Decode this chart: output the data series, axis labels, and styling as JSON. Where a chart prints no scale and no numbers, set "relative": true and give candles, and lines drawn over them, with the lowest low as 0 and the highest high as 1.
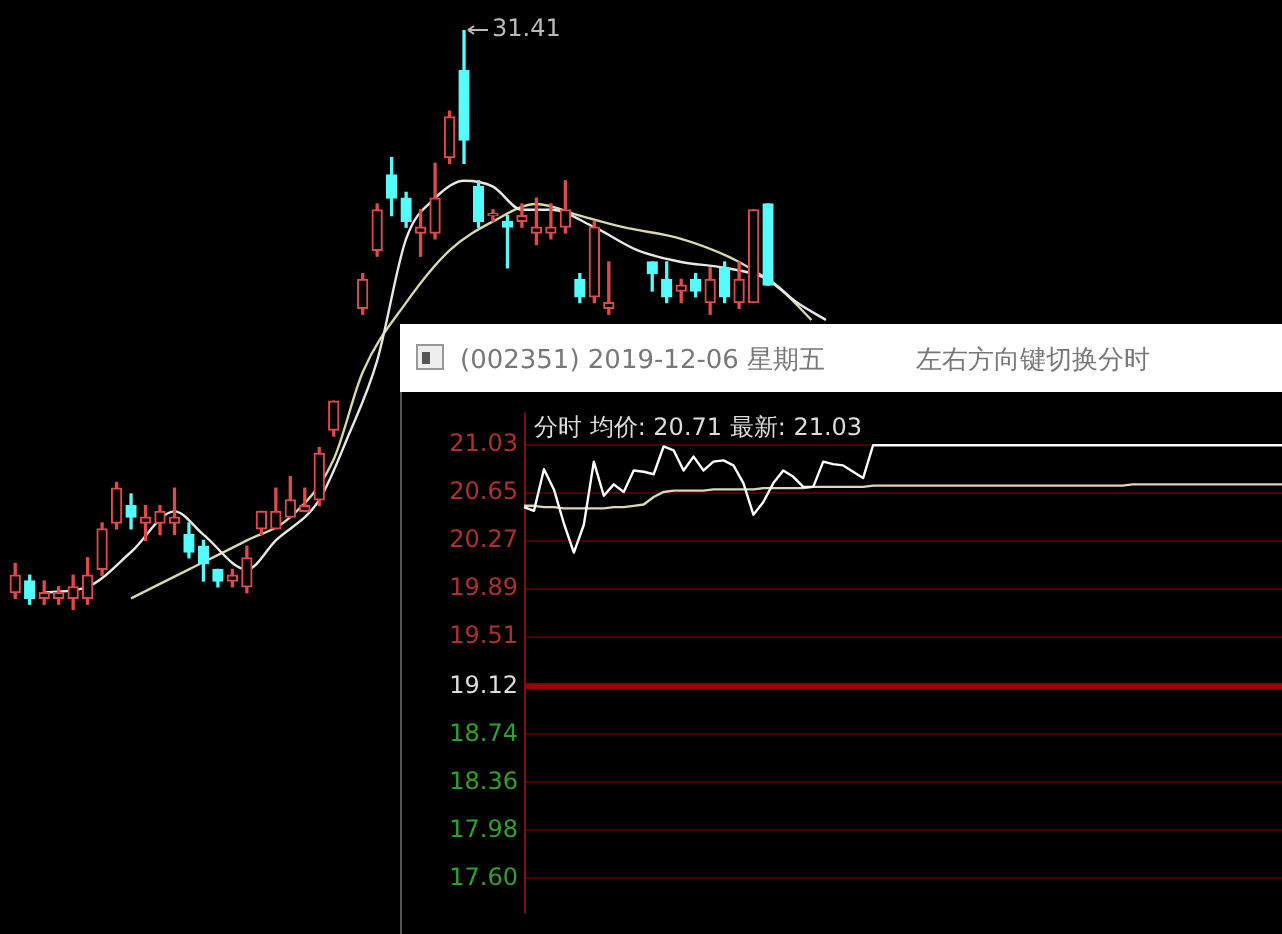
{
  "chart_data": [
    {
      "type": "candlestick",
      "relative": true,
      "categories": [
        null,
        null,
        null,
        null,
        null,
        null,
        null,
        null,
        null,
        null,
        null,
        null,
        null,
        null,
        null,
        null,
        null,
        null,
        null,
        null,
        null,
        null,
        null,
        null,
        null,
        null,
        null,
        null,
        null,
        null,
        null,
        null,
        null,
        null,
        null,
        null,
        null,
        null,
        null,
        null,
        null,
        null,
        null,
        null,
        null,
        null,
        null,
        null,
        null,
        null,
        null,
        null,
        null,
        null,
        null,
        null,
        null,
        null,
        null,
        null,
        null,
        null,
        null,
        null,
        null,
        null,
        null,
        null,
        null,
        null,
        null,
        null,
        null,
        null,
        null,
        null,
        null,
        null,
        null,
        null,
        null,
        null,
        null,
        null,
        null,
        null,
        null,
        null
      ],
      "ohlc": [
        [
          0.03,
          0.08,
          0.02,
          0.06
        ],
        [
          0.05,
          0.06,
          0.01,
          0.02
        ],
        [
          0.02,
          0.05,
          0.01,
          0.03
        ],
        [
          0.02,
          0.04,
          0.01,
          0.03
        ],
        [
          0.02,
          0.06,
          0,
          0.04
        ],
        [
          0.02,
          0.09,
          0.01,
          0.06
        ],
        [
          0.07,
          0.15,
          0.06,
          0.14
        ],
        [
          0.15,
          0.22,
          0.14,
          0.21
        ],
        [
          0.18,
          0.2,
          0.14,
          0.16
        ],
        [
          0.15,
          0.18,
          0.12,
          0.16
        ],
        [
          0.15,
          0.18,
          0.13,
          0.17
        ],
        [
          0.15,
          0.21,
          0.13,
          0.16
        ],
        [
          0.13,
          0.15,
          0.09,
          0.1
        ],
        [
          0.11,
          0.12,
          0.05,
          0.08
        ],
        [
          0.07,
          0.07,
          0.04,
          0.05
        ],
        [
          0.05,
          0.07,
          0.04,
          0.06
        ],
        [
          0.04,
          0.11,
          0.03,
          0.09
        ],
        [
          0.14,
          0.17,
          0.13,
          0.17
        ],
        [
          0.14,
          0.21,
          0.14,
          0.17
        ],
        [
          0.16,
          0.23,
          0.16,
          0.19
        ],
        [
          0.17,
          0.21,
          0.17,
          0.18
        ],
        [
          0.19,
          0.28,
          0.18,
          0.27
        ],
        [
          0.31,
          0.36,
          0.3,
          0.36
        ],
        null,
        [
          0.52,
          0.58,
          0.51,
          0.57
        ],
        [
          0.62,
          0.7,
          0.61,
          0.69
        ],
        [
          0.75,
          0.78,
          0.68,
          0.71
        ],
        [
          0.71,
          0.72,
          0.66,
          0.67
        ],
        [
          0.65,
          0.69,
          0.61,
          0.66
        ],
        [
          0.65,
          0.77,
          0.64,
          0.71
        ],
        [
          0.78,
          0.86,
          0.77,
          0.85
        ],
        [
          0.93,
          1,
          0.77,
          0.81
        ],
        [
          0.73,
          0.74,
          0.66,
          0.67
        ],
        [
          0.68,
          0.69,
          0.67,
          0.68
        ],
        [
          0.67,
          0.68,
          0.59,
          0.66
        ],
        [
          0.67,
          0.7,
          0.66,
          0.68
        ],
        [
          0.65,
          0.71,
          0.63,
          0.66
        ],
        [
          0.65,
          0.7,
          0.64,
          0.66
        ],
        [
          0.66,
          0.74,
          0.65,
          0.69
        ],
        [
          0.57,
          0.58,
          0.53,
          0.54
        ],
        [
          0.54,
          0.67,
          0.53,
          0.66
        ],
        [
          0.52,
          0.6,
          0.51,
          0.53
        ],
        null,
        null,
        [
          0.6,
          0.6,
          0.55,
          0.58
        ],
        [
          0.57,
          0.6,
          0.53,
          0.54
        ],
        [
          0.55,
          0.57,
          0.53,
          0.56
        ],
        [
          0.57,
          0.58,
          0.54,
          0.55
        ],
        [
          0.53,
          0.59,
          0.51,
          0.57
        ],
        [
          0.59,
          0.6,
          0.53,
          0.54
        ],
        [
          0.53,
          0.6,
          0.52,
          0.57
        ],
        [
          0.53,
          0.69,
          0.53,
          0.69
        ],
        [
          0.7,
          0.7,
          0.56,
          0.56
        ],
        null,
        null,
        null,
        null,
        null,
        null,
        null,
        null,
        null,
        null,
        null,
        null,
        null,
        null,
        null,
        null,
        null,
        null,
        null,
        null,
        null,
        null,
        null,
        null,
        null,
        null,
        null,
        null,
        null,
        null,
        null,
        null,
        null,
        null,
        null
      ],
      "colors": [
        "#e04a4a",
        "#54fcfc",
        "#e04a4a",
        "#e04a4a",
        "#e04a4a",
        "#e04a4a",
        "#e04a4a",
        "#e04a4a",
        "#54fcfc",
        "#e04a4a",
        "#e04a4a",
        "#e04a4a",
        "#54fcfc",
        "#54fcfc",
        "#54fcfc",
        "#e04a4a",
        "#e04a4a",
        "#e04a4a",
        "#e04a4a",
        "#e04a4a",
        "#e04a4a",
        "#e04a4a",
        "#e04a4a",
        null,
        "#e04a4a",
        "#e04a4a",
        "#54fcfc",
        "#54fcfc",
        "#e04a4a",
        "#e04a4a",
        "#e04a4a",
        "#54fcfc",
        "#54fcfc",
        "#e04a4a",
        "#54fcfc",
        "#e04a4a",
        "#e04a4a",
        "#e04a4a",
        "#e04a4a",
        "#54fcfc",
        "#e04a4a",
        "#e04a4a",
        null,
        null,
        "#54fcfc",
        "#54fcfc",
        "#e04a4a",
        "#54fcfc",
        "#e04a4a",
        "#54fcfc",
        "#e04a4a",
        "#e04a4a",
        "#54fcfc",
        null,
        null,
        null,
        null,
        null,
        null,
        null,
        null,
        null,
        null,
        null,
        null,
        null,
        null,
        null,
        null,
        null,
        null,
        null,
        null,
        null,
        null,
        null,
        null,
        null,
        null,
        null,
        null,
        null,
        null,
        null,
        null,
        null,
        null,
        null
      ],
      "value_labels": [
        null,
        null,
        null,
        null,
        null,
        null,
        null,
        null,
        null,
        null,
        null,
        null,
        null,
        null,
        null,
        null,
        null,
        null,
        null,
        null,
        null,
        null,
        null,
        null,
        null,
        null,
        null,
        null,
        null,
        null,
        null,
        "31.41",
        null,
        null,
        null,
        null,
        null,
        null,
        null,
        null,
        null,
        null,
        null,
        null,
        null,
        null,
        null,
        null,
        null,
        null,
        null,
        null,
        null,
        null,
        null,
        null,
        null,
        null,
        null,
        null,
        null,
        null,
        null,
        null,
        null,
        null,
        null,
        null,
        null,
        null,
        null,
        null,
        null,
        null,
        null,
        null,
        null,
        null,
        null,
        null,
        null,
        null,
        null,
        null,
        null,
        null,
        null,
        null
      ],
      "series": [
        {
          "type": "line",
          "color": "#e8e8e8",
          "values": [
            null,
            null,
            0.03,
            null,
            null,
            0.04,
            null,
            null,
            0.1,
            null,
            null,
            0.17,
            null,
            0.13,
            null,
            null,
            0.07,
            null,
            0.12,
            null,
            null,
            0.19,
            null,
            0.3,
            null,
            0.43,
            null,
            0.64,
            null,
            0.71,
            null,
            0.74,
            null,
            0.73,
            null,
            0.69,
            null,
            0.69,
            null,
            null,
            0.66,
            null,
            null,
            0.62,
            null,
            null,
            0.6,
            null,
            null,
            0.59,
            null,
            null,
            0.57,
            null,
            0.53,
            null,
            0.5,
            null,
            null,
            null,
            null,
            null,
            null,
            null,
            null,
            null,
            null,
            null,
            null,
            null,
            null,
            null,
            null,
            null,
            null,
            null,
            null,
            null,
            null,
            null,
            null,
            null,
            null,
            null,
            null,
            null,
            null,
            null
          ]
        },
        {
          "type": "line",
          "color": "#d8d8a8",
          "values": [
            null,
            null,
            null,
            null,
            null,
            null,
            null,
            null,
            0.02,
            null,
            null,
            null,
            0.07,
            null,
            null,
            null,
            0.12,
            null,
            null,
            0.16,
            null,
            null,
            0.26,
            null,
            0.41,
            null,
            null,
            0.53,
            null,
            null,
            0.62,
            null,
            null,
            0.67,
            null,
            null,
            0.7,
            null,
            null,
            0.68,
            null,
            null,
            0.66,
            null,
            null,
            null,
            0.64,
            null,
            null,
            null,
            0.6,
            null,
            null,
            0.55,
            null,
            0.5,
            null,
            null,
            null,
            null,
            null,
            null,
            null,
            null,
            null,
            null,
            null,
            null,
            null,
            null,
            null,
            null,
            null,
            null,
            null,
            null,
            null,
            null,
            null,
            null,
            null,
            null,
            null,
            null,
            null,
            null,
            null,
            null
          ]
        }
      ]
    },
    {
      "type": "line",
      "title": "(002351) 2019-12-06 星期五",
      "subtitle": "左右方向键切换分时",
      "annotations": [
        "分时 均价: 20.71 最新: 21.03"
      ],
      "categories": [
        null,
        null,
        null,
        null,
        null,
        null,
        null,
        null,
        null,
        null,
        null,
        null,
        null,
        null,
        null,
        null,
        null,
        null,
        null,
        null,
        null,
        null,
        null,
        null,
        null,
        null,
        null,
        null,
        null,
        null,
        null,
        null,
        null,
        null,
        null,
        null,
        null,
        null,
        null,
        null,
        null,
        null,
        null,
        null,
        null,
        null,
        null,
        null,
        null,
        null,
        null,
        null,
        null,
        null,
        null,
        null,
        null,
        null,
        null,
        null,
        null,
        null,
        null,
        null,
        null,
        null,
        null,
        null,
        null,
        null,
        null,
        null,
        null,
        null,
        null,
        null,
        null
      ],
      "ylim": [
        17.32,
        21.29
      ],
      "yticks": [
        21.03,
        20.65,
        20.27,
        19.89,
        19.51,
        19.12,
        18.74,
        18.36,
        17.98,
        {
          "value": 17.6,
          "label": "17.60"
        }
      ],
      "tick_labels": "y",
      "grid": "y",
      "ref_lines": [
        {
          "axis": "y",
          "value": 19.12,
          "color": "#a00000"
        }
      ],
      "series": [
        {
          "color": "#ffffff",
          "values": [
            20.54,
            20.51,
            20.84,
            20.68,
            20.41,
            20.18,
            20.4,
            20.9,
            20.63,
            20.72,
            20.66,
            20.83,
            20.82,
            20.8,
            21.02,
            20.99,
            20.83,
            20.94,
            20.83,
            20.9,
            20.91,
            20.87,
            20.73,
            20.48,
            20.58,
            20.73,
            20.83,
            20.78,
            20.7,
            20.7,
            20.9,
            20.88,
            20.87,
            20.82,
            20.77,
            21.03,
            21.03,
            21.03,
            21.03,
            21.03,
            21.03,
            21.03,
            21.03,
            21.03,
            21.03,
            21.03,
            21.03,
            21.03,
            21.03,
            21.03,
            21.03,
            21.03,
            21.03,
            21.03,
            21.03,
            21.03,
            21.03,
            21.03,
            21.03,
            21.03,
            21.03,
            21.03,
            21.03,
            21.03,
            21.03,
            21.03,
            21.03,
            21.03,
            21.03,
            21.03,
            21.03,
            21.03,
            21.03,
            21.03,
            21.03,
            21.03,
            21.03
          ]
        },
        {
          "color": "#d8d8b8",
          "values": [
            20.55,
            20.55,
            20.54,
            20.54,
            20.53,
            20.53,
            20.53,
            20.53,
            20.53,
            20.54,
            20.54,
            20.55,
            20.56,
            20.62,
            20.66,
            20.67,
            20.67,
            20.67,
            20.67,
            20.68,
            20.68,
            20.68,
            20.68,
            20.68,
            20.69,
            20.69,
            20.69,
            20.69,
            20.69,
            20.7,
            20.7,
            20.7,
            20.7,
            20.7,
            20.7,
            20.71,
            20.71,
            20.71,
            20.71,
            20.71,
            20.71,
            20.71,
            20.71,
            20.71,
            20.71,
            20.71,
            20.71,
            20.71,
            20.71,
            20.71,
            20.71,
            20.71,
            20.71,
            20.71,
            20.71,
            20.71,
            20.71,
            20.71,
            20.71,
            20.71,
            20.71,
            20.72,
            20.72,
            20.72,
            20.72,
            20.72,
            20.72,
            20.72,
            20.72,
            20.72,
            20.72,
            20.72,
            20.72,
            20.72,
            20.72,
            20.72,
            20.72
          ]
        }
      ]
    }
  ]
}
